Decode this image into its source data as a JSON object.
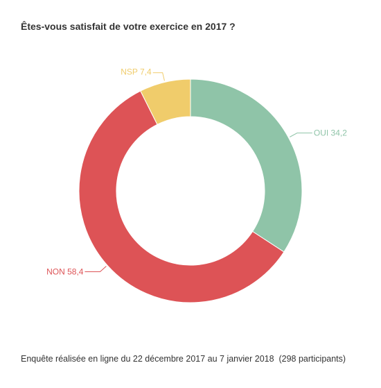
{
  "chart_data": {
    "type": "pie",
    "style": "donut",
    "title": "Êtes-vous satisfait de votre exercice en 2017 ?",
    "slices": [
      {
        "label": "OUI",
        "display": "OUI 34,2",
        "value": 34.2,
        "color": "#8fc4a8"
      },
      {
        "label": "NON",
        "display": "NON 58,4",
        "value": 58.4,
        "color": "#dd5356"
      },
      {
        "label": "NSP",
        "display": "NSP 7,4",
        "value": 7.4,
        "color": "#f0cc6b"
      }
    ],
    "footnote": "Enquête réalisée en ligne du 22 décembre 2017 au 7 janvier 2018  (298 participants)"
  }
}
